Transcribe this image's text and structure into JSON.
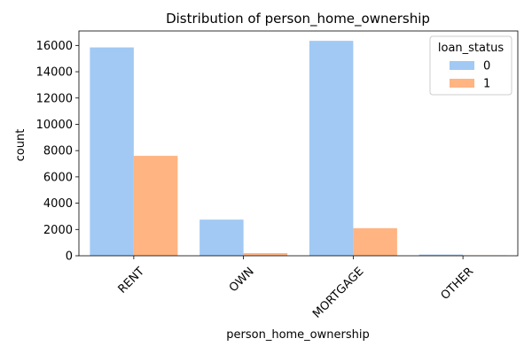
{
  "chart_data": {
    "type": "bar",
    "title": "Distribution of person_home_ownership",
    "xlabel": "person_home_ownership",
    "ylabel": "count",
    "categories": [
      "RENT",
      "OWN",
      "MORTGAGE",
      "OTHER"
    ],
    "series": [
      {
        "name": "0",
        "color": "#a1c9f4",
        "values": [
          15850,
          2750,
          16350,
          90
        ]
      },
      {
        "name": "1",
        "color": "#ffb482",
        "values": [
          7600,
          200,
          2100,
          30
        ]
      }
    ],
    "ylim": [
      0,
      17100
    ],
    "yticks": [
      0,
      2000,
      4000,
      6000,
      8000,
      10000,
      12000,
      14000,
      16000
    ],
    "legend": {
      "title": "loan_status",
      "position": "top-right"
    },
    "grid": false,
    "xtick_rotation": 45
  }
}
